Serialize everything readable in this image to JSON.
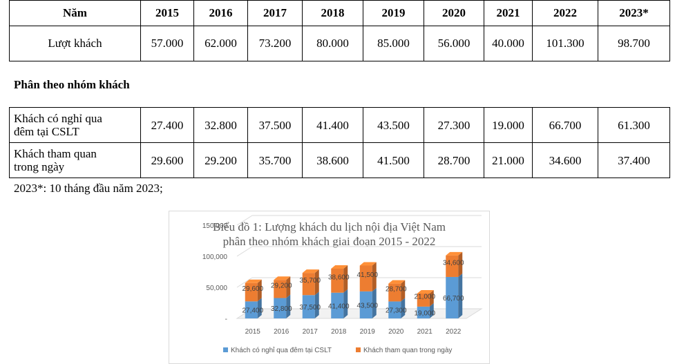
{
  "table1": {
    "header": [
      "Năm",
      "2015",
      "2016",
      "2017",
      "2018",
      "2019",
      "2020",
      "2021",
      "2022",
      "2023*"
    ],
    "row": {
      "label": "Lượt khách",
      "values": [
        "57.000",
        "62.000",
        "73.200",
        "80.000",
        "85.000",
        "56.000",
        "40.000",
        "101.300",
        "98.700"
      ]
    }
  },
  "section_title": "Phân theo nhóm khách",
  "table2": {
    "rows": [
      {
        "label_line1": "Khách có nghỉ qua",
        "label_line2": "đêm tại CSLT",
        "values": [
          "27.400",
          "32.800",
          "37.500",
          "41.400",
          "43.500",
          "27.300",
          "19.000",
          "66.700",
          "61.300"
        ]
      },
      {
        "label_line1": "Khách tham quan",
        "label_line2": "trong ngày",
        "values": [
          "29.600",
          "29.200",
          "35.700",
          "38.600",
          "41.500",
          "28.700",
          "21.000",
          "34.600",
          "37.400"
        ]
      }
    ]
  },
  "note": "2023*: 10 tháng đầu năm 2023;",
  "chart_data": {
    "type": "bar",
    "stacked": true,
    "title_line1": "Biểu đồ 1: Lượng khách du lịch nội địa Việt Nam",
    "title_line2": "phân theo nhóm khách giai đoạn 2015 - 2022",
    "categories": [
      "2015",
      "2016",
      "2017",
      "2018",
      "2019",
      "2020",
      "2021",
      "2022"
    ],
    "series": [
      {
        "name": "Khách có nghỉ qua đêm tại CSLT",
        "color": "#5b9bd5",
        "values": [
          27400,
          32800,
          37500,
          41400,
          43500,
          27300,
          19000,
          66700
        ],
        "labels": [
          "27,400",
          "32,800",
          "37,500",
          "41,400",
          "43,500",
          "27,300",
          "19,000",
          "66,700"
        ]
      },
      {
        "name": "Khách tham quan trong ngày",
        "color": "#ed7d31",
        "values": [
          29600,
          29200,
          35700,
          38600,
          41500,
          28700,
          21000,
          34600
        ],
        "labels": [
          "29,600",
          "29,200",
          "35,700",
          "38,600",
          "41,500",
          "28,700",
          "21,000",
          "34,600"
        ]
      }
    ],
    "yticks": [
      "-",
      "50,000",
      "100,000",
      "150,000"
    ],
    "ytick_values": [
      0,
      50000,
      100000,
      150000
    ],
    "ylim": [
      0,
      150000
    ],
    "grid": true,
    "legend_position": "bottom",
    "style": "3d"
  }
}
